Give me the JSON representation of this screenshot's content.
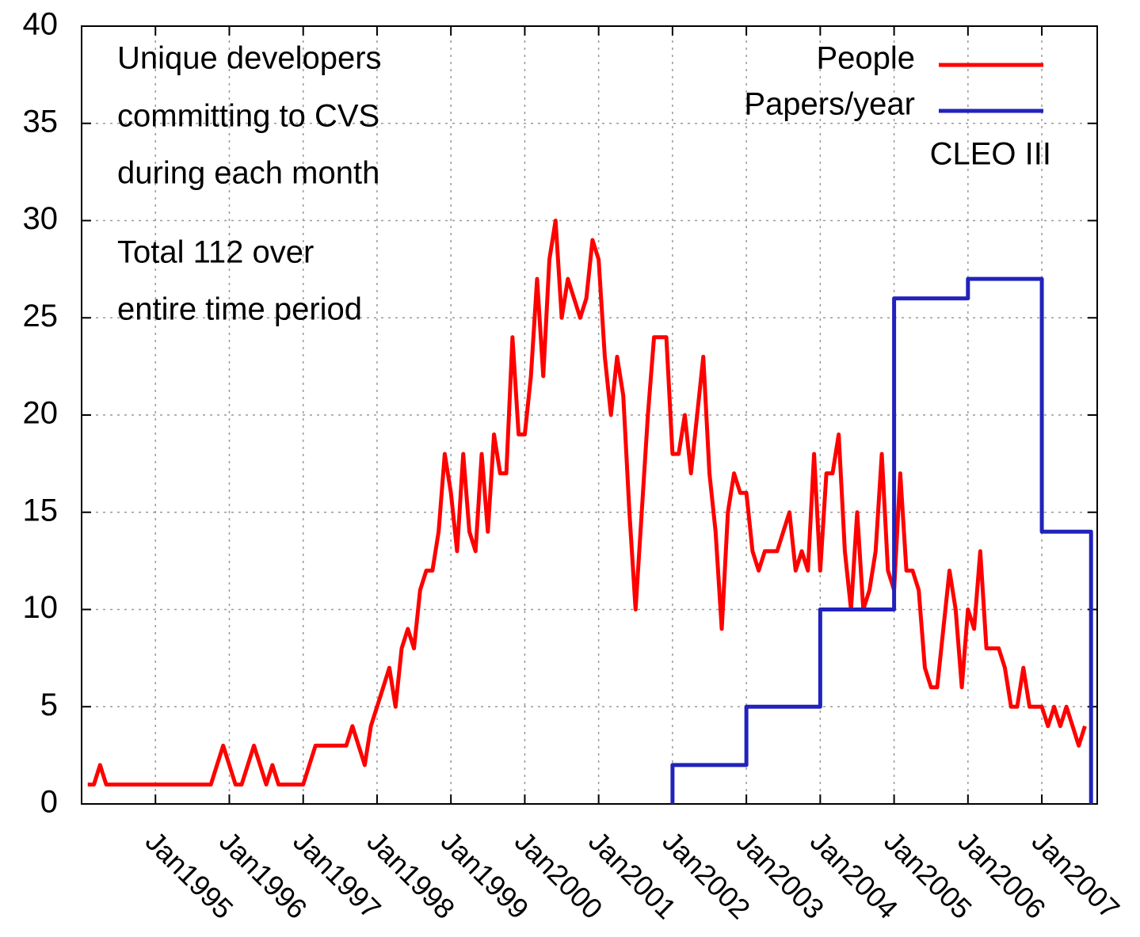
{
  "chart_data": {
    "type": "line",
    "annotations": [
      "Unique developers",
      "committing to CVS",
      "during each month",
      "Total 112 over",
      "entire time period",
      "CLEO III"
    ],
    "xlim": [
      "1994-01",
      "2007-10"
    ],
    "xticks": [
      {
        "value": "1995-01",
        "label": "Jan1995"
      },
      {
        "value": "1996-01",
        "label": "Jan1996"
      },
      {
        "value": "1997-01",
        "label": "Jan1997"
      },
      {
        "value": "1998-01",
        "label": "Jan1998"
      },
      {
        "value": "1999-01",
        "label": "Jan1999"
      },
      {
        "value": "2000-01",
        "label": "Jan2000"
      },
      {
        "value": "2001-01",
        "label": "Jan2001"
      },
      {
        "value": "2002-01",
        "label": "Jan2002"
      },
      {
        "value": "2003-01",
        "label": "Jan2003"
      },
      {
        "value": "2004-01",
        "label": "Jan2004"
      },
      {
        "value": "2005-01",
        "label": "Jan2005"
      },
      {
        "value": "2006-01",
        "label": "Jan2006"
      },
      {
        "value": "2007-01",
        "label": "Jan2007"
      }
    ],
    "ylim": [
      0,
      40
    ],
    "yticks": [
      0,
      5,
      10,
      15,
      20,
      25,
      30,
      35,
      40
    ],
    "grid": true,
    "legend": "top-right",
    "series": [
      {
        "name": "People",
        "color": "#ff0000",
        "x": [
          "1994-02",
          "1994-03",
          "1994-04",
          "1994-05",
          "1994-06",
          "1994-07",
          "1994-08",
          "1994-09",
          "1994-10",
          "1994-11",
          "1994-12",
          "1995-01",
          "1995-02",
          "1995-03",
          "1995-04",
          "1995-05",
          "1995-06",
          "1995-07",
          "1995-08",
          "1995-09",
          "1995-10",
          "1995-11",
          "1995-12",
          "1996-01",
          "1996-02",
          "1996-03",
          "1996-04",
          "1996-05",
          "1996-06",
          "1996-07",
          "1996-08",
          "1996-09",
          "1996-10",
          "1996-11",
          "1996-12",
          "1997-01",
          "1997-02",
          "1997-03",
          "1997-04",
          "1997-05",
          "1997-06",
          "1997-07",
          "1997-08",
          "1997-09",
          "1997-10",
          "1997-11",
          "1997-12",
          "1998-01",
          "1998-02",
          "1998-03",
          "1998-04",
          "1998-05",
          "1998-06",
          "1998-07",
          "1998-08",
          "1998-09",
          "1998-10",
          "1998-11",
          "1998-12",
          "1999-01",
          "1999-02",
          "1999-03",
          "1999-04",
          "1999-05",
          "1999-06",
          "1999-07",
          "1999-08",
          "1999-09",
          "1999-10",
          "1999-11",
          "1999-12",
          "2000-01",
          "2000-02",
          "2000-03",
          "2000-04",
          "2000-05",
          "2000-06",
          "2000-07",
          "2000-08",
          "2000-09",
          "2000-10",
          "2000-11",
          "2000-12",
          "2001-01",
          "2001-02",
          "2001-03",
          "2001-04",
          "2001-05",
          "2001-06",
          "2001-07",
          "2001-08",
          "2001-09",
          "2001-10",
          "2001-11",
          "2001-12",
          "2002-01",
          "2002-02",
          "2002-03",
          "2002-04",
          "2002-05",
          "2002-06",
          "2002-07",
          "2002-08",
          "2002-09",
          "2002-10",
          "2002-11",
          "2002-12",
          "2003-01",
          "2003-02",
          "2003-03",
          "2003-04",
          "2003-05",
          "2003-06",
          "2003-07",
          "2003-08",
          "2003-09",
          "2003-10",
          "2003-11",
          "2003-12",
          "2004-01",
          "2004-02",
          "2004-03",
          "2004-04",
          "2004-05",
          "2004-06",
          "2004-07",
          "2004-08",
          "2004-09",
          "2004-10",
          "2004-11",
          "2004-12",
          "2005-01",
          "2005-02",
          "2005-03",
          "2005-04",
          "2005-05",
          "2005-06",
          "2005-07",
          "2005-08",
          "2005-09",
          "2005-10",
          "2005-11",
          "2005-12",
          "2006-01",
          "2006-02",
          "2006-03",
          "2006-04",
          "2006-05",
          "2006-06",
          "2006-07",
          "2006-08",
          "2006-09",
          "2006-10",
          "2006-11",
          "2006-12",
          "2007-01",
          "2007-02",
          "2007-03",
          "2007-04",
          "2007-05",
          "2007-06",
          "2007-07",
          "2007-08"
        ],
        "values": [
          1,
          1,
          2,
          1,
          1,
          1,
          1,
          1,
          1,
          1,
          1,
          1,
          1,
          1,
          1,
          1,
          1,
          1,
          1,
          1,
          1,
          2,
          3,
          2,
          1,
          1,
          2,
          3,
          2,
          1,
          2,
          1,
          1,
          1,
          1,
          1,
          2,
          3,
          3,
          3,
          3,
          3,
          3,
          4,
          3,
          2,
          4,
          5,
          6,
          7,
          5,
          8,
          9,
          8,
          11,
          12,
          12,
          14,
          18,
          16,
          13,
          18,
          14,
          13,
          18,
          14,
          19,
          17,
          17,
          24,
          19,
          19,
          22,
          27,
          22,
          28,
          30,
          25,
          27,
          26,
          25,
          26,
          29,
          28,
          23,
          20,
          23,
          21,
          15,
          10,
          15,
          20,
          24,
          24,
          24,
          18,
          18,
          20,
          17,
          20,
          23,
          17,
          14,
          9,
          15,
          17,
          16,
          16,
          13,
          12,
          13,
          13,
          13,
          14,
          15,
          12,
          13,
          12,
          18,
          12,
          17,
          17,
          19,
          13,
          10,
          15,
          10,
          11,
          13,
          18,
          12,
          11,
          17,
          12,
          12,
          11,
          7,
          6,
          6,
          9,
          12,
          10,
          6,
          10,
          9,
          13,
          8,
          8,
          8,
          7,
          5,
          5,
          7,
          5,
          5,
          5,
          4,
          5,
          4,
          5,
          4,
          3,
          4
        ]
      },
      {
        "name": "Papers/year",
        "color": "#2222bb",
        "step": "post",
        "x": [
          "2002-01",
          "2003-01",
          "2004-01",
          "2005-01",
          "2006-01",
          "2007-01",
          "2007-09"
        ],
        "values": [
          2,
          5,
          10,
          26,
          27,
          14,
          0
        ]
      }
    ]
  }
}
